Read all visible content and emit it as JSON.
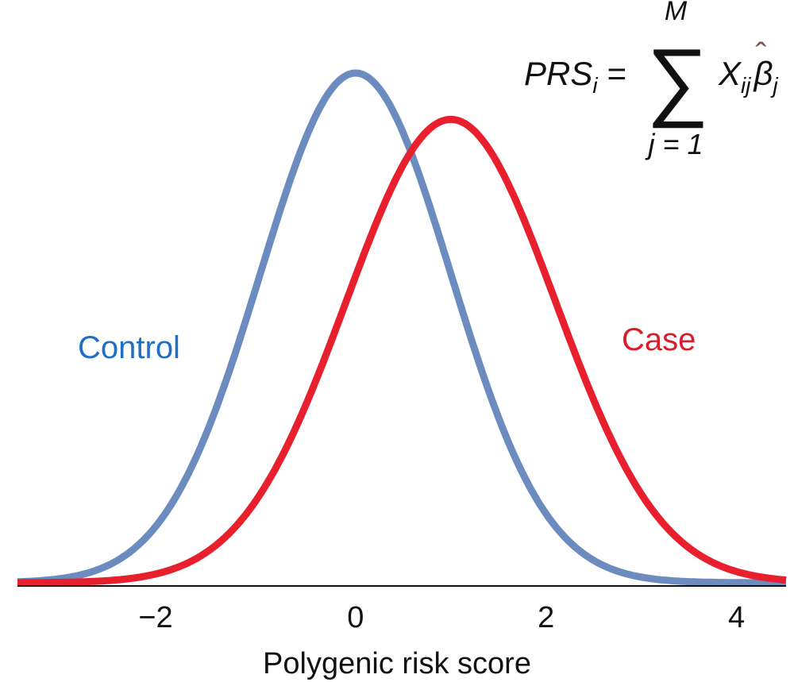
{
  "chart_data": {
    "type": "line",
    "title": "",
    "xlabel": "Polygenic risk score",
    "ylabel": "",
    "xlim": [
      -3.55,
      4.52
    ],
    "xticks": [
      -2,
      0,
      2,
      4
    ],
    "xtick_labels": [
      "−2",
      "0",
      "2",
      "4"
    ],
    "grid": false,
    "series": [
      {
        "name": "Control",
        "distribution": "normal",
        "mean": 0,
        "sd": 1,
        "color": "#6c8cc0",
        "label_color": "#1f6fc5"
      },
      {
        "name": "Case",
        "distribution": "normal",
        "mean": 1,
        "sd": 1.1,
        "color": "#e8202e",
        "label_color": "#d81e2b"
      }
    ],
    "annotation": {
      "lhs": "PRS",
      "lhs_sub": "i",
      "equals": "=",
      "sum_symbol": "∑",
      "upper": "M",
      "lower": "j = 1",
      "term": "X",
      "term_sub": "ij",
      "coef": "β",
      "coef_hat": "ˆ",
      "coef_sub": "j"
    }
  }
}
